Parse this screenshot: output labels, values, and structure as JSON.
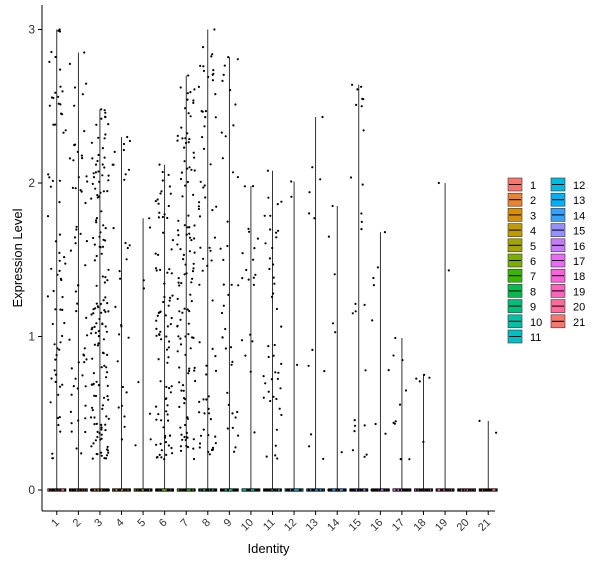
{
  "chart_data": {
    "type": "scatter",
    "subtype": "violin-jitter",
    "title": "",
    "xlabel": "Identity",
    "ylabel": "Expression Level",
    "ylim": [
      -0.12,
      3.05
    ],
    "yticks": [
      0,
      1,
      2,
      3
    ],
    "grid": false,
    "legend_position": "right",
    "categories": [
      "1",
      "2",
      "3",
      "4",
      "5",
      "6",
      "7",
      "8",
      "9",
      "10",
      "11",
      "12",
      "13",
      "14",
      "15",
      "16",
      "17",
      "18",
      "19",
      "20",
      "21"
    ],
    "colors": [
      "#F8766D",
      "#EA8331",
      "#D89000",
      "#C09B00",
      "#A3A500",
      "#7CAE00",
      "#39B600",
      "#00BB4E",
      "#00BF7D",
      "#00C1A3",
      "#00BFC4",
      "#00BAE0",
      "#00B0F6",
      "#35A2FF",
      "#9590FF",
      "#C77CFF",
      "#E76BF3",
      "#FA62DB",
      "#FF62BC",
      "#FF6A98",
      "#F8766D"
    ],
    "max_values": [
      3.0,
      2.85,
      2.48,
      2.3,
      1.77,
      2.12,
      2.7,
      3.0,
      2.82,
      1.98,
      2.08,
      2.01,
      2.43,
      1.85,
      2.64,
      1.68,
      0.99,
      0.75,
      2.0,
      0.0,
      0.45
    ],
    "point_counts": [
      70,
      60,
      150,
      30,
      8,
      90,
      120,
      70,
      40,
      20,
      45,
      3,
      12,
      6,
      25,
      8,
      10,
      5,
      2,
      0,
      2
    ],
    "zero_fraction": "majority of cells at 0 in every identity"
  }
}
